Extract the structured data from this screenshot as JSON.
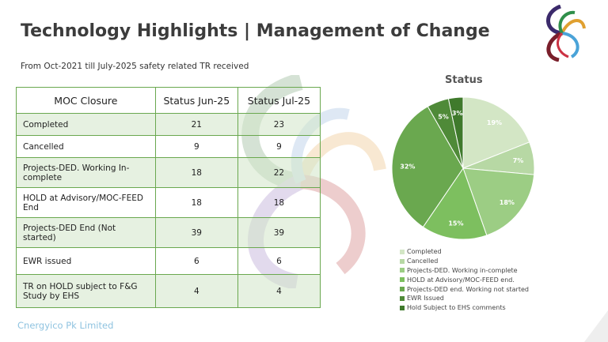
{
  "header": {
    "title": "Technology Highlights | Management of Change",
    "subtitle": "From Oct-2021 till July-2025 safety related TR received"
  },
  "table": {
    "columns": [
      "MOC Closure",
      "Status Jun-25",
      "Status Jul-25"
    ],
    "rows": [
      {
        "label": "Completed",
        "jun": "21",
        "jul": "23"
      },
      {
        "label": "Cancelled",
        "jun": "9",
        "jul": "9"
      },
      {
        "label": "Projects-DED. Working In-complete",
        "jun": "18",
        "jul": "22"
      },
      {
        "label": "HOLD at Advisory/MOC-FEED End",
        "jun": "18",
        "jul": "18"
      },
      {
        "label": "Projects-DED End (Not started)",
        "jun": "39",
        "jul": "39"
      },
      {
        "label": "EWR issued",
        "jun": "6",
        "jul": "6"
      },
      {
        "label": "TR on HOLD subject to F&G Study by EHS",
        "jun": "4",
        "jul": "4"
      }
    ]
  },
  "footer": {
    "company": "Cnergyico Pk Limited"
  },
  "chart_data": {
    "type": "pie",
    "title": "Status",
    "categories": [
      "Completed",
      "Cancelled",
      "Projects-DED. Working in-complete",
      "HOLD at Advisory/MOC-FEED end.",
      "Projects-DED end. Working not started",
      "EWR Issued",
      "Hold Subject to EHS comments"
    ],
    "values": [
      23,
      9,
      22,
      18,
      39,
      6,
      4
    ],
    "labels": [
      "19%",
      "7%",
      "18%",
      "15%",
      "32%",
      "5%",
      "3%"
    ],
    "colors": [
      "#d3e6c5",
      "#b7d8a4",
      "#9ccd84",
      "#7dbf5f",
      "#6aa84f",
      "#4f8a38",
      "#3f7a2c"
    ],
    "legend_position": "bottom"
  }
}
